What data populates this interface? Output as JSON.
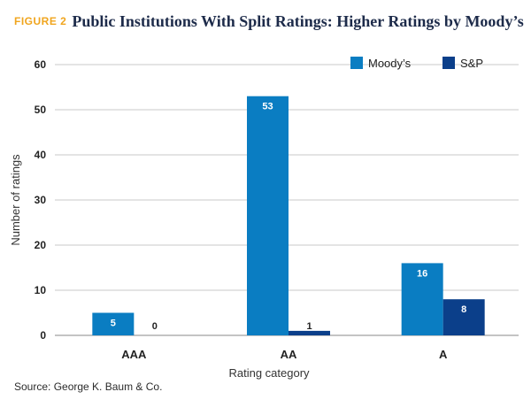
{
  "header": {
    "figure_label": "FIGURE 2",
    "title": "Public Institutions With Split Ratings: Higher Ratings by Moody’s"
  },
  "source": "Source: George K. Baum & Co.",
  "chart_data": {
    "type": "bar",
    "categories": [
      "AAA",
      "AA",
      "A"
    ],
    "series": [
      {
        "name": "Moody’s",
        "values": [
          5,
          53,
          16
        ],
        "color": "#0a7dc2"
      },
      {
        "name": "S&P",
        "values": [
          0,
          1,
          8
        ],
        "color": "#0b3f8a"
      }
    ],
    "xlabel": "Rating category",
    "ylabel": "Number of ratings",
    "ylim": [
      0,
      60
    ],
    "yticks": [
      0,
      10,
      20,
      30,
      40,
      50,
      60
    ],
    "grid": true,
    "legend": "top-right"
  }
}
